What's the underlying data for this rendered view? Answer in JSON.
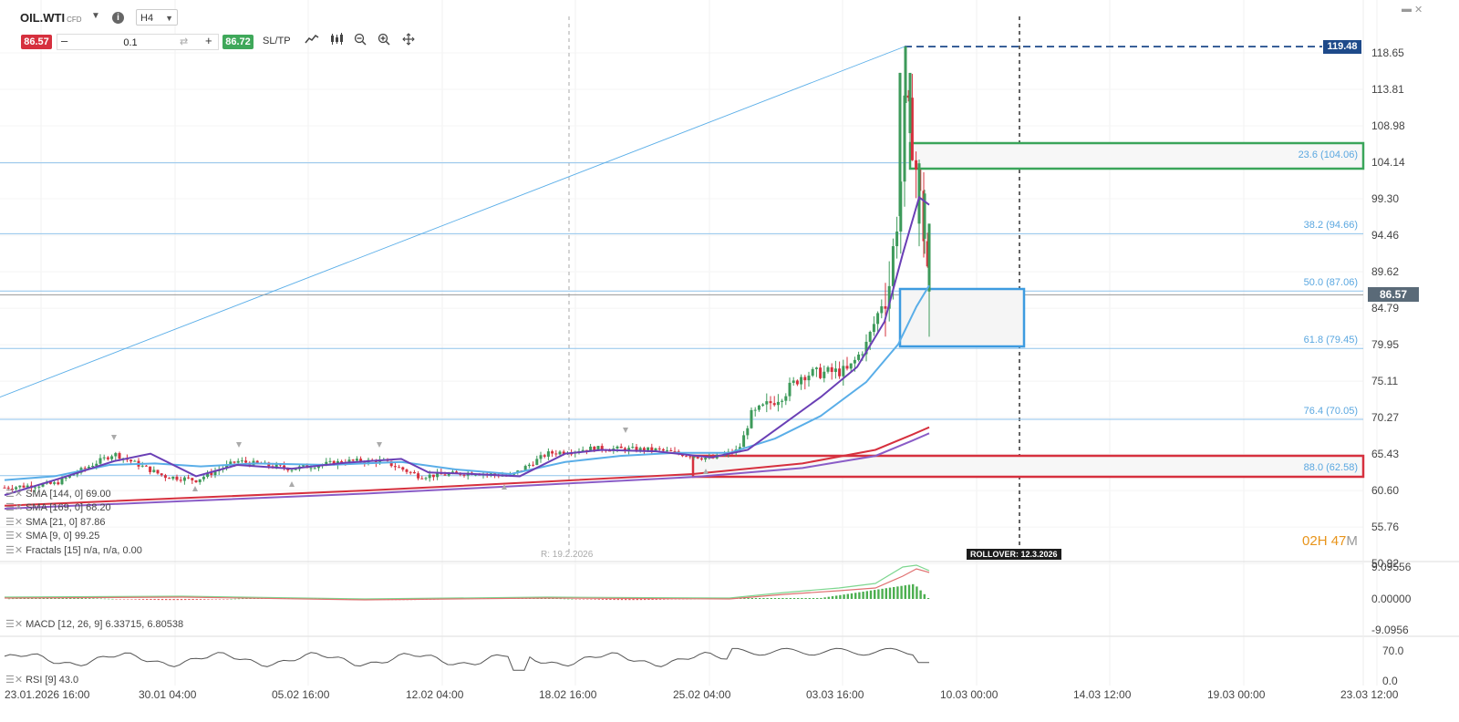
{
  "header": {
    "symbol": "OIL.WTI",
    "symbol_tag": "CFD",
    "timeframe": "H4",
    "sell_price": "86.57",
    "buy_price": "86.72",
    "quantity": "0.1",
    "sltp_label": "SL/TP"
  },
  "price_axis": {
    "labels": [
      "118.65",
      "113.81",
      "108.98",
      "104.14",
      "99.30",
      "94.46",
      "89.62",
      "84.79",
      "79.95",
      "75.11",
      "70.27",
      "65.43",
      "60.60",
      "55.76",
      "50.92"
    ],
    "current_price_tag": "86.57",
    "high_tag": "119.48"
  },
  "fib_levels": [
    {
      "label": "23.6 (104.06)",
      "value": 104.06
    },
    {
      "label": "38.2 (94.66)",
      "value": 94.66
    },
    {
      "label": "50.0 (87.06)",
      "value": 87.06
    },
    {
      "label": "61.8 (79.45)",
      "value": 79.45
    },
    {
      "label": "76.4 (70.05)",
      "value": 70.05
    },
    {
      "label": "88.0 (62.58)",
      "value": 62.58
    }
  ],
  "time_axis": [
    "23.01.2026 16:00",
    "30.01 04:00",
    "05.02 16:00",
    "12.02 04:00",
    "18.02 16:00",
    "25.02 04:00",
    "03.03 16:00",
    "10.03 00:00",
    "14.03 12:00",
    "19.03 00:00",
    "23.03 12:00"
  ],
  "indicators": [
    "SMA [144, 0] 69.00",
    "SMA [169, 0] 68.20",
    "SMA [21, 0] 87.86",
    "SMA [9, 0] 99.25",
    "Fractals [15] n/a, n/a, 0.00"
  ],
  "macd": {
    "legend": "MACD [12, 26, 9] 6.33715, 6.80538",
    "axis": [
      "9.09556",
      "0.00000",
      "-9.0956"
    ]
  },
  "rsi": {
    "legend": "RSI [9] 43.0",
    "axis": [
      "70.0",
      "0.0"
    ]
  },
  "markers": {
    "rollover": "ROLLOVER: 12.3.2026",
    "r_label": "R: 19.2.2026"
  },
  "timer": {
    "hours": "02",
    "h_unit": "H",
    "minutes": "47",
    "m_unit": "M"
  },
  "colors": {
    "bull": "#3d9a5a",
    "bear": "#d6303e",
    "fib": "#7ab8e8",
    "sma9": "#6a3fb5",
    "sma21": "#5aaee8",
    "sma144": "#d6303e",
    "sma169": "#8a5cc7",
    "macd": "#e06060",
    "signal": "#4caf50"
  }
}
